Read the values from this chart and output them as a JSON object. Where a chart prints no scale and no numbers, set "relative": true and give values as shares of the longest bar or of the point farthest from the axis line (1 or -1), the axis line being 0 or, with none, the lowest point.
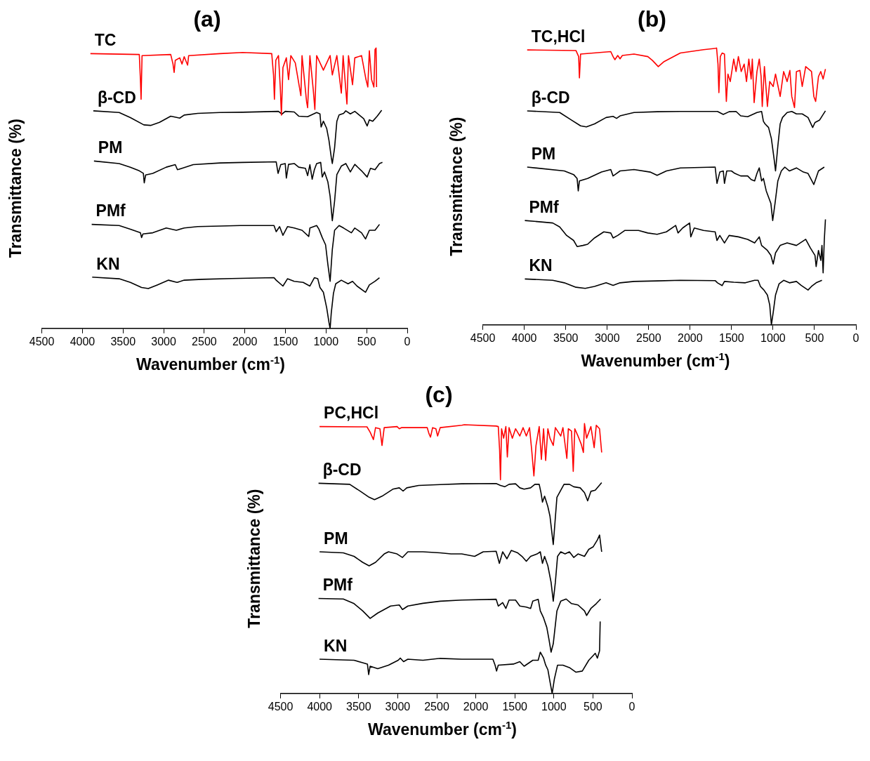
{
  "chart_data": [
    {
      "type": "line",
      "title": "(a)",
      "xlabel": "Wavenumber (cm$^{-1}$)",
      "ylabel": "Transmittance (%)",
      "relative": true,
      "xlim": [
        4500,
        0
      ],
      "xticks": [
        4500,
        4000,
        3500,
        3000,
        2500,
        2000,
        1500,
        1000,
        500,
        0
      ],
      "series": [
        {
          "name": "TC",
          "color": "#ff0000",
          "x": [
            3902,
            3300,
            3286,
            3278,
            3266,
            2913,
            2885,
            2871,
            2857,
            2802,
            2774,
            2747,
            2705,
            2692,
            2305,
            2028,
            1669,
            1647,
            1636,
            1619,
            1586,
            1564,
            1550,
            1531,
            1489,
            1462,
            1434,
            1379,
            1310,
            1296,
            1240,
            1227,
            1199,
            1158,
            1138,
            1116,
            1033,
            950,
            923,
            867,
            812,
            790,
            743,
            724,
            674,
            646,
            563,
            508,
            486,
            467,
            439,
            411,
            397,
            384,
            378
          ],
          "values": [
            0.98,
            0.977,
            0.887,
            0.817,
            0.973,
            0.977,
            0.943,
            0.913,
            0.956,
            0.965,
            0.943,
            0.969,
            0.939,
            0.973,
            0.98,
            0.984,
            0.98,
            0.904,
            0.817,
            0.956,
            0.973,
            0.861,
            0.761,
            0.93,
            0.965,
            0.887,
            0.973,
            0.947,
            0.83,
            0.973,
            0.809,
            0.787,
            0.973,
            0.852,
            0.781,
            0.973,
            0.921,
            0.973,
            0.904,
            0.973,
            0.839,
            0.973,
            0.8,
            0.973,
            0.869,
            0.965,
            0.973,
            0.887,
            0.861,
            0.99,
            0.887,
            0.861,
            0.995,
            1.0,
            0.861
          ]
        },
        {
          "name": "β-CD",
          "color": "#000000",
          "x": [
            3866,
            3548,
            3410,
            3244,
            3161,
            3051,
            2913,
            2830,
            2802,
            2747,
            2581,
            2305,
            2028,
            1586,
            1544,
            1503,
            1392,
            1337,
            1227,
            1116,
            1075,
            1061,
            1033,
            992,
            964,
            936,
            923,
            895,
            867,
            840,
            784,
            757,
            701,
            646,
            591,
            536,
            494,
            467,
            425,
            370,
            315
          ],
          "values": [
            0.776,
            0.77,
            0.752,
            0.726,
            0.724,
            0.735,
            0.757,
            0.752,
            0.75,
            0.761,
            0.767,
            0.77,
            0.771,
            0.774,
            0.764,
            0.774,
            0.772,
            0.757,
            0.755,
            0.77,
            0.765,
            0.718,
            0.739,
            0.713,
            0.67,
            0.61,
            0.588,
            0.644,
            0.739,
            0.761,
            0.767,
            0.776,
            0.765,
            0.774,
            0.761,
            0.748,
            0.722,
            0.744,
            0.739,
            0.757,
            0.778
          ]
        },
        {
          "name": "PM",
          "color": "#000000",
          "x": [
            3858,
            3548,
            3410,
            3300,
            3250,
            3239,
            3222,
            3134,
            2968,
            2857,
            2830,
            2774,
            2636,
            2305,
            2028,
            1614,
            1591,
            1558,
            1503,
            1489,
            1462,
            1392,
            1337,
            1254,
            1227,
            1199,
            1171,
            1144,
            1116,
            1066,
            1047,
            1019,
            978,
            950,
            923,
            895,
            867,
            812,
            757,
            701,
            646,
            563,
            494,
            453,
            397,
            342,
            306
          ],
          "values": [
            0.597,
            0.588,
            0.575,
            0.562,
            0.553,
            0.519,
            0.547,
            0.553,
            0.575,
            0.584,
            0.566,
            0.571,
            0.584,
            0.59,
            0.592,
            0.594,
            0.553,
            0.584,
            0.588,
            0.536,
            0.585,
            0.588,
            0.575,
            0.571,
            0.545,
            0.584,
            0.532,
            0.566,
            0.588,
            0.592,
            0.54,
            0.558,
            0.523,
            0.471,
            0.384,
            0.454,
            0.549,
            0.579,
            0.588,
            0.558,
            0.585,
            0.562,
            0.54,
            0.571,
            0.566,
            0.588,
            0.592
          ]
        },
        {
          "name": "PMf",
          "color": "#000000",
          "x": [
            3886,
            3548,
            3410,
            3286,
            3272,
            3255,
            3134,
            2968,
            2844,
            2747,
            2581,
            2305,
            2056,
            1890,
            1641,
            1614,
            1572,
            1531,
            1475,
            1392,
            1296,
            1213,
            1199,
            1116,
            1088,
            1047,
            1006,
            978,
            950,
            923,
            895,
            840,
            784,
            688,
            646,
            563,
            514,
            467,
            397,
            342
          ],
          "values": [
            0.371,
            0.367,
            0.354,
            0.341,
            0.324,
            0.337,
            0.341,
            0.358,
            0.35,
            0.358,
            0.363,
            0.365,
            0.367,
            0.367,
            0.367,
            0.345,
            0.363,
            0.332,
            0.363,
            0.358,
            0.35,
            0.328,
            0.358,
            0.367,
            0.354,
            0.324,
            0.298,
            0.229,
            0.168,
            0.281,
            0.35,
            0.367,
            0.358,
            0.341,
            0.358,
            0.341,
            0.319,
            0.35,
            0.35,
            0.371
          ]
        },
        {
          "name": "KN",
          "color": "#000000",
          "x": [
            3880,
            3548,
            3410,
            3272,
            3189,
            3079,
            2940,
            2835,
            2747,
            2526,
            2166,
            1641,
            1614,
            1531,
            1475,
            1392,
            1282,
            1199,
            1144,
            1102,
            1075,
            1033,
            992,
            964,
            950,
            936,
            909,
            881,
            812,
            729,
            674,
            619,
            514,
            467,
            397,
            342
          ],
          "values": [
            0.183,
            0.177,
            0.164,
            0.146,
            0.142,
            0.155,
            0.172,
            0.164,
            0.172,
            0.175,
            0.178,
            0.181,
            0.172,
            0.151,
            0.177,
            0.168,
            0.164,
            0.151,
            0.181,
            0.177,
            0.146,
            0.129,
            0.073,
            0.021,
            0.0,
            0.055,
            0.125,
            0.159,
            0.172,
            0.159,
            0.168,
            0.151,
            0.129,
            0.155,
            0.168,
            0.181
          ]
        }
      ]
    },
    {
      "type": "line",
      "title": "(b)",
      "xlabel": "Wavenumber (cm$^{-1}$)",
      "ylabel": "Transmittance (%)",
      "relative": true,
      "xlim": [
        4500,
        0
      ],
      "xticks": [
        4500,
        4000,
        3500,
        3000,
        2500,
        2000,
        1500,
        1000,
        500,
        0
      ],
      "series": [
        {
          "name": "TC,HCl",
          "color": "#ff0000",
          "x": [
            3965,
            3377,
            3344,
            3335,
            3321,
            2957,
            2929,
            2907,
            2873,
            2845,
            2817,
            2677,
            2510,
            2454,
            2384,
            2314,
            2118,
            1838,
            1692,
            1681,
            1664,
            1653,
            1636,
            1614,
            1586,
            1563,
            1544,
            1516,
            1474,
            1446,
            1418,
            1384,
            1348,
            1320,
            1292,
            1264,
            1250,
            1228,
            1194,
            1166,
            1144,
            1130,
            1104,
            1068,
            1040,
            998,
            970,
            914,
            872,
            830,
            797,
            774,
            741,
            718,
            676,
            648,
            606,
            536,
            508,
            486,
            452,
            424,
            396,
            368
          ],
          "values": [
            0.993,
            0.991,
            0.969,
            0.892,
            0.978,
            0.987,
            0.969,
            0.958,
            0.973,
            0.961,
            0.973,
            0.978,
            0.969,
            0.955,
            0.933,
            0.951,
            0.982,
            0.994,
            0.999,
            1.0,
            0.942,
            0.839,
            0.969,
            0.982,
            0.978,
            0.807,
            0.906,
            0.879,
            0.96,
            0.915,
            0.969,
            0.915,
            0.942,
            0.879,
            0.96,
            0.888,
            0.96,
            0.803,
            0.915,
            0.96,
            0.897,
            0.789,
            0.933,
            0.789,
            0.879,
            0.861,
            0.906,
            0.825,
            0.915,
            0.879,
            0.919,
            0.825,
            0.785,
            0.915,
            0.919,
            0.861,
            0.933,
            0.915,
            0.825,
            0.807,
            0.897,
            0.915,
            0.888,
            0.924
          ]
        },
        {
          "name": "β-CD",
          "color": "#000000",
          "x": [
            3965,
            3573,
            3433,
            3321,
            3251,
            3153,
            3013,
            2929,
            2887,
            2845,
            2677,
            2398,
            2118,
            1670,
            1600,
            1530,
            1446,
            1390,
            1306,
            1194,
            1138,
            1116,
            1096,
            1054,
            1020,
            984,
            970,
            942,
            914,
            886,
            830,
            774,
            718,
            648,
            578,
            522,
            494,
            438,
            368
          ],
          "values": [
            0.773,
            0.767,
            0.74,
            0.719,
            0.715,
            0.726,
            0.749,
            0.753,
            0.746,
            0.755,
            0.767,
            0.77,
            0.771,
            0.771,
            0.76,
            0.77,
            0.771,
            0.755,
            0.752,
            0.767,
            0.771,
            0.735,
            0.726,
            0.713,
            0.673,
            0.592,
            0.556,
            0.646,
            0.726,
            0.749,
            0.767,
            0.771,
            0.762,
            0.762,
            0.749,
            0.713,
            0.731,
            0.74,
            0.773
          ]
        },
        {
          "name": "PM",
          "color": "#000000",
          "x": [
            3965,
            3517,
            3405,
            3363,
            3349,
            3335,
            3237,
            3069,
            2957,
            2929,
            2887,
            2845,
            2677,
            2482,
            2398,
            2286,
            2118,
            1698,
            1676,
            1642,
            1600,
            1586,
            1558,
            1502,
            1460,
            1390,
            1306,
            1264,
            1222,
            1194,
            1166,
            1138,
            1116,
            1082,
            1026,
            1004,
            976,
            942,
            900,
            858,
            802,
            718,
            634,
            578,
            508,
            452,
            382
          ],
          "values": [
            0.57,
            0.556,
            0.543,
            0.529,
            0.484,
            0.52,
            0.529,
            0.552,
            0.561,
            0.538,
            0.547,
            0.556,
            0.561,
            0.552,
            0.54,
            0.556,
            0.567,
            0.57,
            0.511,
            0.552,
            0.556,
            0.511,
            0.556,
            0.556,
            0.547,
            0.538,
            0.538,
            0.525,
            0.52,
            0.547,
            0.567,
            0.52,
            0.529,
            0.484,
            0.439,
            0.377,
            0.439,
            0.52,
            0.556,
            0.57,
            0.556,
            0.567,
            0.552,
            0.547,
            0.507,
            0.556,
            0.57
          ]
        },
        {
          "name": "PMf",
          "color": "#000000",
          "x": [
            3993,
            3797,
            3657,
            3573,
            3489,
            3405,
            3363,
            3293,
            3237,
            3153,
            3041,
            2957,
            2929,
            2873,
            2789,
            2622,
            2510,
            2398,
            2286,
            2174,
            2146,
            2090,
            2006,
            1992,
            1950,
            1838,
            1698,
            1676,
            1642,
            1586,
            1530,
            1418,
            1306,
            1222,
            1166,
            1138,
            1068,
            1026,
            998,
            970,
            914,
            830,
            718,
            606,
            550,
            494,
            480,
            452,
            424,
            410,
            396,
            382,
            368
          ],
          "values": [
            0.377,
            0.372,
            0.368,
            0.354,
            0.323,
            0.305,
            0.283,
            0.287,
            0.291,
            0.314,
            0.336,
            0.332,
            0.314,
            0.323,
            0.341,
            0.341,
            0.332,
            0.327,
            0.336,
            0.359,
            0.332,
            0.35,
            0.368,
            0.318,
            0.35,
            0.341,
            0.336,
            0.305,
            0.323,
            0.296,
            0.323,
            0.318,
            0.309,
            0.296,
            0.318,
            0.287,
            0.269,
            0.251,
            0.22,
            0.26,
            0.287,
            0.296,
            0.287,
            0.309,
            0.278,
            0.251,
            0.211,
            0.269,
            0.233,
            0.287,
            0.188,
            0.305,
            0.381
          ]
        },
        {
          "name": "KN",
          "color": "#000000",
          "x": [
            3993,
            3657,
            3517,
            3377,
            3265,
            3153,
            3013,
            2929,
            2845,
            2677,
            2398,
            2118,
            1698,
            1670,
            1614,
            1586,
            1474,
            1334,
            1222,
            1180,
            1152,
            1110,
            1068,
            1040,
            1020,
            998,
            970,
            928,
            872,
            802,
            718,
            662,
            578,
            536,
            480,
            410
          ],
          "values": [
            0.166,
            0.161,
            0.152,
            0.136,
            0.132,
            0.139,
            0.152,
            0.143,
            0.152,
            0.157,
            0.159,
            0.161,
            0.16,
            0.152,
            0.142,
            0.157,
            0.154,
            0.152,
            0.161,
            0.161,
            0.139,
            0.126,
            0.108,
            0.072,
            0.0,
            0.045,
            0.108,
            0.148,
            0.161,
            0.152,
            0.157,
            0.143,
            0.126,
            0.139,
            0.152,
            0.161
          ]
        }
      ]
    },
    {
      "type": "line",
      "title": "(c)",
      "xlabel": "Wavenumber (cm$^{-1}$)",
      "ylabel": "Transmittance (%)",
      "relative": true,
      "xlim": [
        4500,
        0
      ],
      "xticks": [
        4500,
        4000,
        3500,
        3000,
        2500,
        2000,
        1500,
        1000,
        500,
        0
      ],
      "series": [
        {
          "name": "PC,HCl",
          "color": "#ff0000",
          "x": [
            4001,
            3394,
            3353,
            3311,
            3284,
            3228,
            3201,
            3173,
            3008,
            2980,
            2953,
            2622,
            2600,
            2580,
            2553,
            2511,
            2489,
            2456,
            2180,
            2147,
            1739,
            1712,
            1695,
            1684,
            1670,
            1643,
            1615,
            1596,
            1574,
            1532,
            1491,
            1436,
            1394,
            1353,
            1312,
            1284,
            1256,
            1229,
            1188,
            1160,
            1132,
            1105,
            1077,
            1050,
            1008,
            981,
            912,
            884,
            834,
            815,
            774,
            752,
            732,
            691,
            650,
            622,
            608,
            581,
            526,
            484,
            457,
            415,
            388
          ],
          "values": [
            0.989,
            0.988,
            0.968,
            0.941,
            0.985,
            0.981,
            0.919,
            0.985,
            0.989,
            0.981,
            0.985,
            0.985,
            0.963,
            0.95,
            0.985,
            0.981,
            0.954,
            0.985,
            0.994,
            0.996,
            0.991,
            0.989,
            0.902,
            0.792,
            0.981,
            0.946,
            0.989,
            0.876,
            0.985,
            0.946,
            0.981,
            0.954,
            0.985,
            0.954,
            0.985,
            0.902,
            0.806,
            0.919,
            0.989,
            0.867,
            0.981,
            0.863,
            0.981,
            0.946,
            0.919,
            0.985,
            0.954,
            0.985,
            0.871,
            0.981,
            0.972,
            0.823,
            0.981,
            0.954,
            0.924,
            0.893,
            1.0,
            0.946,
            0.989,
            0.911,
            0.994,
            0.981,
            0.893
          ]
        },
        {
          "name": "β-CD",
          "color": "#000000",
          "x": [
            4014,
            3615,
            3477,
            3366,
            3297,
            3201,
            3063,
            2980,
            2931,
            2884,
            2732,
            2456,
            2180,
            1739,
            1684,
            1629,
            1574,
            1491,
            1436,
            1381,
            1298,
            1243,
            1188,
            1165,
            1146,
            1119,
            1077,
            1050,
            1022,
            1008,
            989,
            961,
            912,
            870,
            801,
            746,
            663,
            608,
            567,
            526,
            470,
            388
          ],
          "values": [
            0.779,
            0.775,
            0.749,
            0.727,
            0.718,
            0.731,
            0.757,
            0.762,
            0.75,
            0.762,
            0.771,
            0.774,
            0.777,
            0.778,
            0.771,
            0.766,
            0.775,
            0.777,
            0.762,
            0.757,
            0.762,
            0.775,
            0.775,
            0.744,
            0.709,
            0.731,
            0.692,
            0.657,
            0.587,
            0.552,
            0.622,
            0.727,
            0.753,
            0.775,
            0.775,
            0.766,
            0.762,
            0.744,
            0.714,
            0.749,
            0.753,
            0.781
          ]
        },
        {
          "name": "PM",
          "color": "#000000",
          "x": [
            4001,
            3697,
            3559,
            3449,
            3366,
            3284,
            3173,
            3118,
            3008,
            2939,
            2870,
            2677,
            2456,
            2318,
            2180,
            2015,
            1905,
            1739,
            1698,
            1656,
            1601,
            1546,
            1463,
            1408,
            1353,
            1298,
            1215,
            1174,
            1146,
            1119,
            1077,
            1036,
            1008,
            981,
            953,
            912,
            857,
            801,
            746,
            691,
            608,
            553,
            498,
            443,
            415,
            388
          ],
          "values": [
            0.525,
            0.521,
            0.508,
            0.486,
            0.473,
            0.486,
            0.517,
            0.525,
            0.517,
            0.504,
            0.525,
            0.525,
            0.521,
            0.517,
            0.517,
            0.508,
            0.525,
            0.527,
            0.482,
            0.525,
            0.499,
            0.53,
            0.521,
            0.508,
            0.49,
            0.508,
            0.517,
            0.525,
            0.482,
            0.508,
            0.473,
            0.412,
            0.342,
            0.412,
            0.508,
            0.525,
            0.517,
            0.525,
            0.504,
            0.517,
            0.508,
            0.534,
            0.543,
            0.569,
            0.587,
            0.525
          ]
        },
        {
          "name": "PMf",
          "color": "#000000",
          "x": [
            4014,
            3697,
            3559,
            3449,
            3353,
            3256,
            3091,
            2980,
            2939,
            2870,
            2677,
            2456,
            2180,
            1739,
            1712,
            1656,
            1615,
            1574,
            1491,
            1436,
            1353,
            1298,
            1270,
            1201,
            1174,
            1132,
            1091,
            1063,
            1036,
            1008,
            961,
            912,
            843,
            774,
            691,
            608,
            581,
            526,
            457,
            401
          ],
          "values": [
            0.352,
            0.35,
            0.333,
            0.306,
            0.278,
            0.298,
            0.324,
            0.328,
            0.311,
            0.324,
            0.334,
            0.342,
            0.346,
            0.349,
            0.324,
            0.337,
            0.315,
            0.346,
            0.346,
            0.324,
            0.32,
            0.315,
            0.342,
            0.349,
            0.306,
            0.28,
            0.245,
            0.201,
            0.153,
            0.184,
            0.306,
            0.342,
            0.35,
            0.333,
            0.328,
            0.306,
            0.289,
            0.315,
            0.333,
            0.35
          ]
        },
        {
          "name": "KN",
          "color": "#000000",
          "x": [
            4001,
            3559,
            3449,
            3388,
            3372,
            3353,
            3256,
            3118,
            2994,
            2966,
            2925,
            2870,
            2677,
            2456,
            2180,
            1781,
            1753,
            1734,
            1712,
            1518,
            1436,
            1381,
            1270,
            1201,
            1174,
            1132,
            1105,
            1077,
            1050,
            1022,
            994,
            953,
            884,
            801,
            719,
            636,
            553,
            498,
            470,
            443,
            415,
            407
          ],
          "values": [
            0.127,
            0.123,
            0.114,
            0.109,
            0.07,
            0.101,
            0.092,
            0.105,
            0.123,
            0.131,
            0.118,
            0.127,
            0.123,
            0.13,
            0.127,
            0.127,
            0.105,
            0.083,
            0.105,
            0.109,
            0.118,
            0.101,
            0.123,
            0.123,
            0.153,
            0.131,
            0.105,
            0.088,
            0.044,
            0.0,
            0.053,
            0.105,
            0.105,
            0.096,
            0.079,
            0.083,
            0.123,
            0.14,
            0.149,
            0.131,
            0.158,
            0.267
          ]
        }
      ]
    }
  ]
}
